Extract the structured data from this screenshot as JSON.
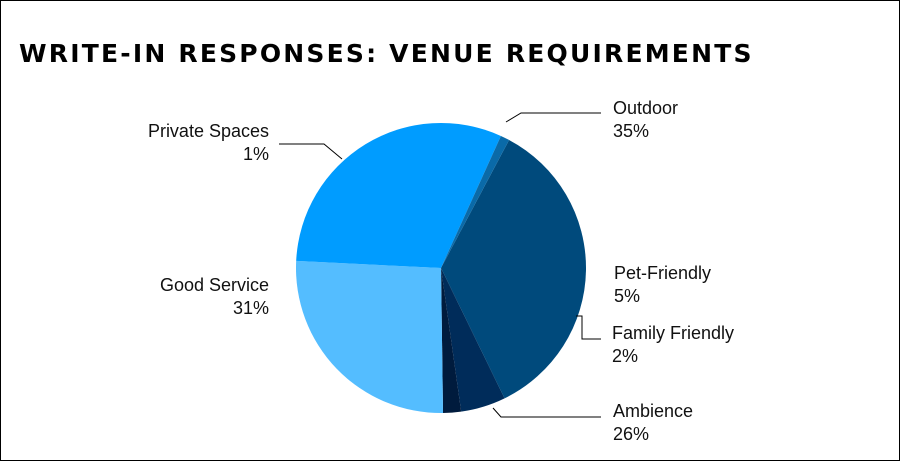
{
  "chart_data": {
    "type": "pie",
    "title": "WRITE-IN RESPONSES: VENUE REQUIREMENTS",
    "slices": [
      {
        "label": "Outdoor",
        "value": 35,
        "value_label": "35%",
        "color": "#004a7c"
      },
      {
        "label": "Pet-Friendly",
        "value": 5,
        "value_label": "5%",
        "color": "#002c5a"
      },
      {
        "label": "Family Friendly",
        "value": 2,
        "value_label": "2%",
        "color": "#001b3d"
      },
      {
        "label": "Ambience",
        "value": 26,
        "value_label": "26%",
        "color": "#54bdff"
      },
      {
        "label": "Good Service",
        "value": 31,
        "value_label": "31%",
        "color": "#009cff"
      },
      {
        "label": "Private Spaces",
        "value": 1,
        "value_label": "1%",
        "color": "#0a6aa8"
      }
    ],
    "legend": "none"
  }
}
